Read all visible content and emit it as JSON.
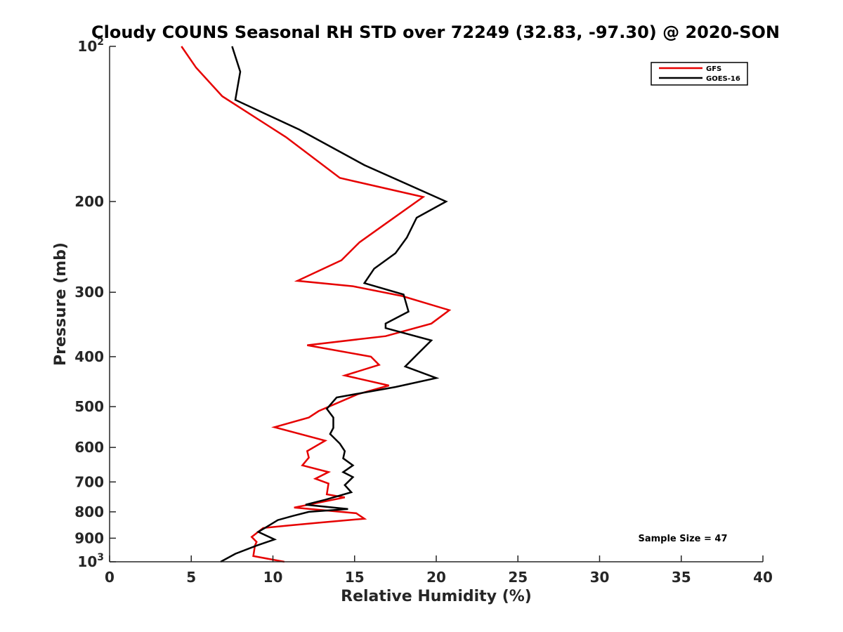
{
  "chart_data": {
    "type": "line",
    "title": "Cloudy COUNS Seasonal RH STD over 72249 (32.83, -97.30) @ 2020-SON",
    "xlabel": "Relative Humidity (%)",
    "ylabel": "Pressure (mb)",
    "xlim": [
      0,
      40
    ],
    "ylim": [
      100,
      1000
    ],
    "yscale": "log",
    "y_reversed": true,
    "x_ticks": [
      0,
      5,
      10,
      15,
      20,
      25,
      30,
      35,
      40
    ],
    "x_tick_labels": [
      "0",
      "5",
      "10",
      "15",
      "20",
      "25",
      "30",
      "35",
      "40"
    ],
    "y_ticks": [
      100,
      200,
      300,
      400,
      500,
      600,
      700,
      800,
      900,
      1000
    ],
    "y_tick_labels": [
      {
        "base": "10",
        "exp": "2"
      },
      {
        "base": "200"
      },
      {
        "base": "300"
      },
      {
        "base": "400"
      },
      {
        "base": "500"
      },
      {
        "base": "600"
      },
      {
        "base": "700"
      },
      {
        "base": "800"
      },
      {
        "base": "900"
      },
      {
        "base": "10",
        "exp": "3"
      }
    ],
    "grid": false,
    "legend_position": "top-right",
    "annotation": "Sample Size = 47",
    "series": [
      {
        "name": "GFS",
        "color": "#e60000",
        "x": [
          4.4,
          5.3,
          6.9,
          10.8,
          14.1,
          19.2,
          16.8,
          15.3,
          14.2,
          11.5,
          14.9,
          17.9,
          20.8,
          19.7,
          16.9,
          12.1,
          16.0,
          16.5,
          14.4,
          17.1,
          15.2,
          12.8,
          12.2,
          10.1,
          13.2,
          12.1,
          12.2,
          11.8,
          13.4,
          12.6,
          13.4,
          13.3,
          14.4,
          11.3,
          15.1,
          15.6,
          12.8,
          11.0,
          9.4,
          8.7,
          9.0,
          8.9,
          8.8,
          10.7
        ],
        "y": [
          100,
          110,
          125,
          150,
          180,
          196,
          222,
          240,
          260,
          285,
          292,
          305,
          325,
          345,
          365,
          380,
          400,
          415,
          435,
          455,
          473,
          510,
          525,
          548,
          582,
          610,
          628,
          650,
          670,
          690,
          705,
          740,
          750,
          785,
          805,
          825,
          840,
          850,
          860,
          895,
          915,
          930,
          975,
          1000
        ]
      },
      {
        "name": "GOES-16",
        "color": "#000000",
        "x": [
          7.5,
          8.0,
          7.7,
          11.6,
          15.6,
          20.6,
          18.8,
          18.2,
          17.5,
          16.2,
          15.6,
          18.0,
          18.3,
          16.9,
          16.9,
          19.7,
          18.8,
          18.1,
          20.0,
          17.5,
          13.9,
          13.3,
          13.7,
          13.7,
          13.5,
          14.1,
          14.4,
          14.3,
          14.9,
          14.3,
          14.9,
          14.4,
          14.8,
          13.2,
          12.0,
          14.6,
          12.2,
          11.2,
          10.3,
          9.5,
          9.1,
          10.1,
          9.0,
          7.7,
          6.8
        ],
        "y": [
          100,
          112,
          127,
          145,
          170,
          200,
          215,
          235,
          252,
          270,
          288,
          303,
          327,
          345,
          352,
          372,
          397,
          418,
          440,
          458,
          480,
          505,
          525,
          550,
          565,
          590,
          610,
          630,
          650,
          670,
          685,
          710,
          733,
          758,
          775,
          790,
          800,
          815,
          830,
          860,
          875,
          905,
          930,
          965,
          1000
        ]
      }
    ]
  }
}
